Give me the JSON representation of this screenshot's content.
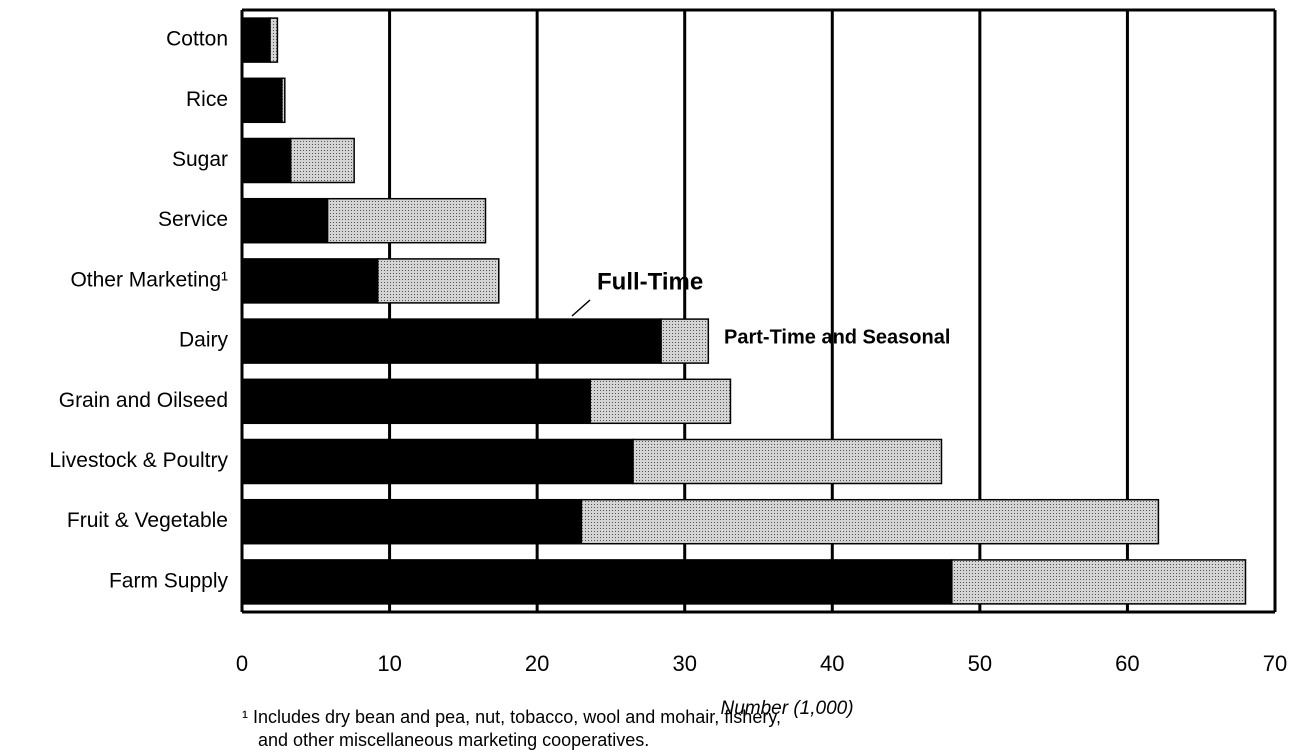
{
  "chart_data": {
    "type": "stacked-barh",
    "categories": [
      "Cotton",
      "Rice",
      "Sugar",
      "Service",
      "Other Marketing¹",
      "Dairy",
      "Grain and Oilseed",
      "Livestock & Poultry",
      "Fruit & Vegetable",
      "Farm Supply"
    ],
    "series": [
      {
        "name": "Full-Time",
        "color": "#000000",
        "values": [
          1.9,
          2.7,
          3.3,
          5.8,
          9.2,
          28.4,
          23.6,
          26.5,
          23.0,
          48.1
        ]
      },
      {
        "name": "Part-Time and Seasonal",
        "color": "#d4d4d4",
        "values": [
          0.5,
          0.2,
          4.3,
          10.7,
          8.2,
          3.2,
          9.5,
          20.9,
          39.1,
          19.9
        ]
      }
    ],
    "xlim": [
      0,
      70
    ],
    "xticks": [
      0,
      10,
      20,
      30,
      40,
      50,
      60,
      70
    ],
    "xlabel": "Number (1,000)",
    "grid": true,
    "footnote": [
      "¹ Includes dry bean and pea, nut, tobacco, wool and mohair, fishery,",
      "and other miscellaneous marketing cooperatives."
    ]
  }
}
